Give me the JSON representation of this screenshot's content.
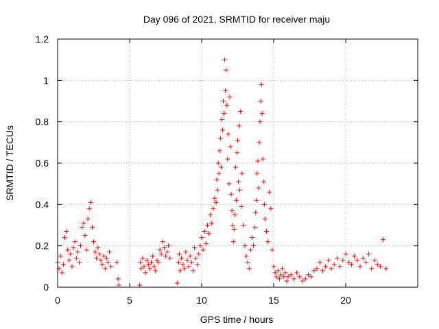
{
  "chart_data": {
    "type": "scatter",
    "title": "Day 096 of 2021, SRMTID for receiver maju",
    "xlabel": "GPS time / hours",
    "ylabel": "SRMTID / TECUs",
    "xlim": [
      0,
      25
    ],
    "ylim": [
      0,
      1.2
    ],
    "xticks": [
      0,
      5,
      10,
      15,
      20
    ],
    "yticks": [
      0,
      0.2,
      0.4,
      0.6,
      0.8,
      1,
      1.2
    ],
    "xtick_labels": [
      "0",
      "5",
      "10",
      "15",
      "20"
    ],
    "ytick_labels": [
      "0",
      "0.2",
      "0.4",
      "0.6",
      "0.8",
      "1",
      "1.2"
    ],
    "grid": true,
    "marker": "plus",
    "series": [
      {
        "name": "SRMTID",
        "color": "#ff0000",
        "x": [
          0.0,
          0.1,
          0.2,
          0.3,
          0.4,
          0.5,
          0.6,
          0.7,
          0.8,
          0.9,
          1.0,
          1.1,
          1.2,
          1.3,
          1.4,
          1.5,
          1.6,
          1.7,
          1.8,
          1.9,
          2.0,
          2.1,
          2.2,
          2.3,
          2.4,
          2.5,
          2.6,
          2.7,
          2.8,
          2.9,
          3.0,
          3.1,
          3.2,
          3.3,
          3.4,
          3.5,
          3.6,
          3.7,
          4.1,
          4.2,
          4.25,
          5.7,
          5.75,
          5.8,
          5.9,
          6.0,
          6.1,
          6.2,
          6.3,
          6.4,
          6.5,
          6.6,
          6.7,
          6.8,
          6.9,
          7.0,
          7.1,
          7.2,
          7.3,
          7.4,
          7.5,
          7.6,
          7.7,
          7.8,
          8.3,
          8.4,
          8.45,
          8.5,
          8.6,
          8.7,
          8.8,
          8.9,
          9.0,
          9.1,
          9.2,
          9.3,
          9.4,
          9.5,
          9.6,
          9.7,
          9.8,
          9.9,
          10.0,
          10.1,
          10.2,
          10.3,
          10.4,
          10.5,
          10.6,
          10.7,
          10.8,
          10.9,
          11.0,
          11.05,
          11.1,
          11.15,
          11.2,
          11.25,
          11.3,
          11.35,
          11.4,
          11.45,
          11.5,
          11.55,
          11.6,
          11.65,
          11.7,
          11.75,
          11.8,
          11.85,
          11.9,
          11.95,
          12.0,
          12.05,
          12.1,
          12.15,
          12.2,
          12.25,
          12.3,
          12.35,
          12.4,
          12.45,
          12.5,
          12.55,
          12.6,
          12.65,
          12.7,
          12.75,
          12.8,
          12.9,
          13.0,
          13.1,
          13.2,
          13.3,
          13.4,
          13.5,
          13.6,
          13.7,
          13.75,
          13.8,
          13.85,
          13.9,
          13.95,
          14.0,
          14.05,
          14.1,
          14.15,
          14.2,
          14.25,
          14.3,
          14.35,
          14.4,
          14.5,
          14.6,
          14.7,
          14.8,
          14.9,
          15.0,
          15.1,
          15.2,
          15.3,
          15.4,
          15.5,
          15.6,
          15.7,
          15.8,
          15.9,
          16.0,
          16.2,
          16.4,
          16.6,
          16.8,
          17.0,
          17.2,
          17.4,
          17.6,
          17.8,
          18.0,
          18.2,
          18.4,
          18.6,
          18.8,
          19.0,
          19.2,
          19.4,
          19.6,
          19.8,
          20.0,
          20.2,
          20.4,
          20.6,
          20.8,
          21.0,
          21.2,
          21.4,
          21.6,
          21.8,
          22.0,
          22.2,
          22.4,
          22.6,
          22.8
        ],
        "y": [
          0.12,
          0.09,
          0.15,
          0.07,
          0.11,
          0.24,
          0.27,
          0.18,
          0.13,
          0.16,
          0.1,
          0.19,
          0.22,
          0.14,
          0.17,
          0.12,
          0.2,
          0.29,
          0.31,
          0.25,
          0.18,
          0.33,
          0.38,
          0.41,
          0.29,
          0.22,
          0.17,
          0.14,
          0.19,
          0.16,
          0.13,
          0.11,
          0.15,
          0.09,
          0.14,
          0.12,
          0.17,
          0.1,
          0.12,
          0.04,
          0.01,
          0.01,
          0.12,
          0.09,
          0.14,
          0.1,
          0.07,
          0.13,
          0.11,
          0.09,
          0.12,
          0.15,
          0.1,
          0.08,
          0.13,
          0.12,
          0.18,
          0.16,
          0.22,
          0.19,
          0.15,
          0.17,
          0.2,
          0.14,
          0.02,
          0.12,
          0.16,
          0.08,
          0.14,
          0.11,
          0.09,
          0.17,
          0.13,
          0.1,
          0.15,
          0.12,
          0.08,
          0.19,
          0.14,
          0.11,
          0.16,
          0.2,
          0.24,
          0.18,
          0.27,
          0.21,
          0.3,
          0.26,
          0.35,
          0.31,
          0.38,
          0.43,
          0.41,
          0.52,
          0.47,
          0.6,
          0.55,
          0.66,
          0.72,
          0.58,
          0.81,
          0.76,
          0.9,
          0.84,
          1.1,
          0.95,
          1.05,
          0.88,
          0.62,
          0.74,
          0.5,
          0.92,
          0.68,
          0.45,
          0.37,
          0.3,
          0.22,
          0.28,
          0.35,
          0.58,
          0.42,
          0.65,
          0.71,
          0.51,
          0.78,
          0.47,
          0.85,
          0.39,
          0.55,
          0.3,
          0.2,
          0.15,
          0.12,
          0.09,
          0.18,
          0.24,
          0.2,
          0.29,
          0.36,
          0.42,
          0.55,
          0.61,
          0.48,
          0.7,
          0.8,
          0.9,
          0.98,
          0.84,
          0.62,
          0.51,
          0.4,
          0.33,
          0.27,
          0.22,
          0.46,
          0.38,
          0.18,
          0.1,
          0.07,
          0.05,
          0.08,
          0.04,
          0.06,
          0.09,
          0.05,
          0.07,
          0.03,
          0.05,
          0.06,
          0.04,
          0.07,
          0.05,
          0.03,
          0.04,
          0.06,
          0.05,
          0.08,
          0.09,
          0.12,
          0.08,
          0.1,
          0.13,
          0.09,
          0.11,
          0.14,
          0.1,
          0.13,
          0.16,
          0.12,
          0.11,
          0.15,
          0.13,
          0.1,
          0.14,
          0.12,
          0.16,
          0.09,
          0.13,
          0.11,
          0.1,
          0.23,
          0.09
        ]
      }
    ]
  }
}
